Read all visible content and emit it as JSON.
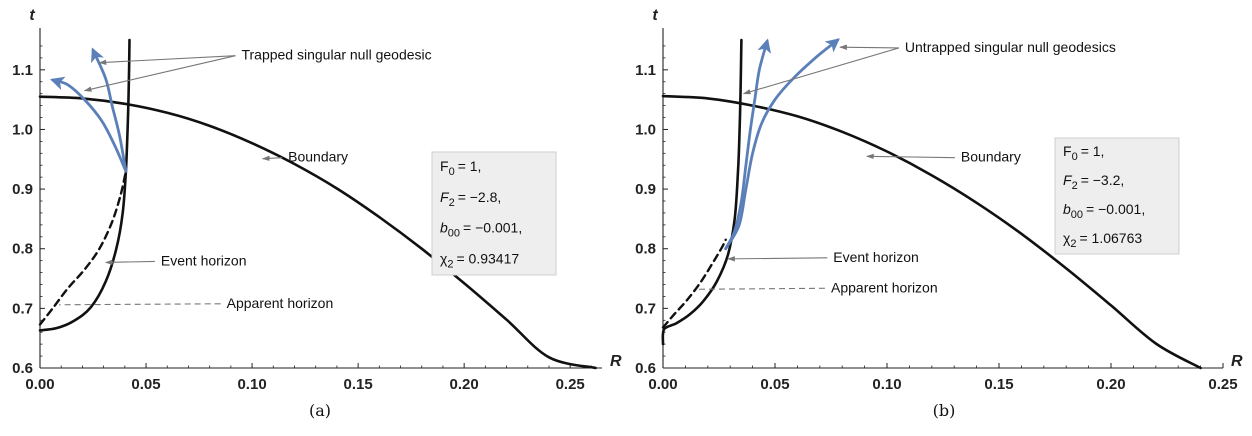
{
  "chart_data": [
    {
      "type": "line",
      "caption": "(a)",
      "xlabel": "R",
      "ylabel": "t",
      "xlim": [
        0,
        0.265
      ],
      "ylim": [
        0.6,
        1.15
      ],
      "xticks": [
        "0.00",
        "0.05",
        "0.10",
        "0.15",
        "0.20",
        "0.25"
      ],
      "yticks": [
        "0.6",
        "0.7",
        "0.8",
        "0.9",
        "1.0",
        "1.1"
      ],
      "grid": false,
      "params": [
        {
          "name": "F",
          "sub": "0",
          "value": "= 1,",
          "italic": false
        },
        {
          "name": "F",
          "sub": "2",
          "value": "= −2.8,",
          "italic": true
        },
        {
          "name": "b",
          "sub": "00",
          "value": "= −0.001,",
          "italic": true
        },
        {
          "name": "χ",
          "sub": "2",
          "value": "= 0.93417",
          "italic": false
        }
      ],
      "annotations": [
        {
          "text": "Trapped singular null geodesic",
          "label_at": [
            0.095,
            1.117
          ],
          "targets": [
            [
              0.028,
              1.112
            ],
            [
              0.021,
              1.065
            ]
          ]
        },
        {
          "text": "Boundary",
          "label_at": [
            0.117,
            0.946
          ],
          "targets": [
            [
              0.105,
              0.951
            ]
          ]
        },
        {
          "text": "Event horizon",
          "label_at": [
            0.057,
            0.772
          ],
          "targets": [
            [
              0.031,
              0.777
            ]
          ]
        },
        {
          "text": "Apparent horizon",
          "label_at": [
            0.088,
            0.701
          ],
          "targets": [
            [
              0.009,
              0.706
            ]
          ],
          "dashed": true
        }
      ],
      "series": [
        {
          "style": "boundary",
          "points": [
            [
              0,
              1.055
            ],
            [
              0.02,
              1.052
            ],
            [
              0.04,
              1.043
            ],
            [
              0.06,
              1.028
            ],
            [
              0.08,
              1.006
            ],
            [
              0.1,
              0.977
            ],
            [
              0.12,
              0.942
            ],
            [
              0.14,
              0.901
            ],
            [
              0.16,
              0.853
            ],
            [
              0.18,
              0.8
            ],
            [
              0.2,
              0.742
            ],
            [
              0.22,
              0.681
            ],
            [
              0.24,
              0.618
            ],
            [
              0.262,
              0.6
            ]
          ]
        },
        {
          "style": "event_horizon",
          "points": [
            [
              0,
              0.663
            ],
            [
              0.008,
              0.667
            ],
            [
              0.016,
              0.679
            ],
            [
              0.024,
              0.702
            ],
            [
              0.031,
              0.745
            ],
            [
              0.036,
              0.8
            ],
            [
              0.039,
              0.86
            ],
            [
              0.0405,
              0.93
            ],
            [
              0.0413,
              1.0
            ],
            [
              0.0418,
              1.06
            ],
            [
              0.0422,
              1.15
            ]
          ]
        },
        {
          "style": "apparent_horizon",
          "points": [
            [
              0,
              0.673
            ],
            [
              0.006,
              0.7
            ],
            [
              0.013,
              0.733
            ],
            [
              0.021,
              0.765
            ],
            [
              0.028,
              0.8
            ],
            [
              0.034,
              0.845
            ],
            [
              0.038,
              0.89
            ],
            [
              0.0405,
              0.93
            ]
          ]
        },
        {
          "style": "geodesic",
          "arrow": true,
          "points": [
            [
              0.0405,
              0.93
            ],
            [
              0.035,
              0.975
            ],
            [
              0.029,
              1.015
            ],
            [
              0.021,
              1.05
            ],
            [
              0.013,
              1.075
            ],
            [
              0.006,
              1.083
            ]
          ]
        },
        {
          "style": "geodesic",
          "arrow": true,
          "points": [
            [
              0.0405,
              0.93
            ],
            [
              0.0375,
              0.99
            ],
            [
              0.034,
              1.04
            ],
            [
              0.031,
              1.085
            ],
            [
              0.025,
              1.133
            ]
          ]
        }
      ]
    },
    {
      "type": "line",
      "caption": "(b)",
      "xlabel": "R",
      "ylabel": "t",
      "xlim": [
        0,
        0.25
      ],
      "ylim": [
        0.6,
        1.15
      ],
      "xticks": [
        "0.00",
        "0.05",
        "0.10",
        "0.15",
        "0.20",
        "0.25"
      ],
      "yticks": [
        "0.6",
        "0.7",
        "0.8",
        "0.9",
        "1.0",
        "1.1"
      ],
      "grid": false,
      "params": [
        {
          "name": "F",
          "sub": "0",
          "value": "= 1,",
          "italic": false
        },
        {
          "name": "F",
          "sub": "2",
          "value": "= −3.2,",
          "italic": true
        },
        {
          "name": "b",
          "sub": "00",
          "value": "= −0.001,",
          "italic": true
        },
        {
          "name": "χ",
          "sub": "2",
          "value": "= 1.06763",
          "italic": false
        }
      ],
      "annotations": [
        {
          "text": "Untrapped singular null geodesics",
          "label_at": [
            0.108,
            1.13
          ],
          "targets": [
            [
              0.079,
              1.138
            ],
            [
              0.036,
              1.06
            ]
          ]
        },
        {
          "text": "Boundary",
          "label_at": [
            0.133,
            0.946
          ],
          "targets": [
            [
              0.091,
              0.955
            ]
          ]
        },
        {
          "text": "Event horizon",
          "label_at": [
            0.076,
            0.778
          ],
          "targets": [
            [
              0.029,
              0.783
            ]
          ]
        },
        {
          "text": "Apparent horizon",
          "label_at": [
            0.075,
            0.727
          ],
          "targets": [
            [
              0.015,
              0.732
            ]
          ],
          "dashed": true
        }
      ],
      "series": [
        {
          "style": "boundary",
          "points": [
            [
              0,
              1.056
            ],
            [
              0.02,
              1.052
            ],
            [
              0.04,
              1.04
            ],
            [
              0.06,
              1.022
            ],
            [
              0.08,
              0.996
            ],
            [
              0.1,
              0.963
            ],
            [
              0.12,
              0.923
            ],
            [
              0.14,
              0.877
            ],
            [
              0.16,
              0.825
            ],
            [
              0.18,
              0.767
            ],
            [
              0.2,
              0.705
            ],
            [
              0.22,
              0.641
            ],
            [
              0.24,
              0.6
            ]
          ]
        },
        {
          "style": "event_horizon",
          "points": [
            [
              0,
              0.64
            ],
            [
              0.0005,
              0.665
            ],
            [
              0.006,
              0.675
            ],
            [
              0.012,
              0.69
            ],
            [
              0.018,
              0.712
            ],
            [
              0.024,
              0.745
            ],
            [
              0.029,
              0.79
            ],
            [
              0.032,
              0.85
            ],
            [
              0.0335,
              0.93
            ],
            [
              0.0342,
              1.0
            ],
            [
              0.0346,
              1.06
            ],
            [
              0.035,
              1.15
            ]
          ]
        },
        {
          "style": "apparent_horizon",
          "points": [
            [
              0,
              0.668
            ],
            [
              0.005,
              0.69
            ],
            [
              0.011,
              0.715
            ],
            [
              0.017,
              0.745
            ],
            [
              0.022,
              0.775
            ],
            [
              0.026,
              0.8
            ],
            [
              0.028,
              0.815
            ]
          ]
        },
        {
          "style": "geodesic",
          "arrow": true,
          "points": [
            [
              0.028,
              0.8
            ],
            [
              0.032,
              0.83
            ],
            [
              0.035,
              0.88
            ],
            [
              0.037,
              0.94
            ],
            [
              0.039,
              1.0
            ],
            [
              0.041,
              1.05
            ],
            [
              0.043,
              1.1
            ],
            [
              0.0465,
              1.148
            ]
          ]
        },
        {
          "style": "geodesic",
          "arrow": true,
          "points": [
            [
              0.028,
              0.8
            ],
            [
              0.034,
              0.84
            ],
            [
              0.037,
              0.9
            ],
            [
              0.04,
              0.96
            ],
            [
              0.044,
              1.01
            ],
            [
              0.05,
              1.05
            ],
            [
              0.058,
              1.085
            ],
            [
              0.068,
              1.12
            ],
            [
              0.078,
              1.15
            ]
          ]
        }
      ]
    }
  ]
}
